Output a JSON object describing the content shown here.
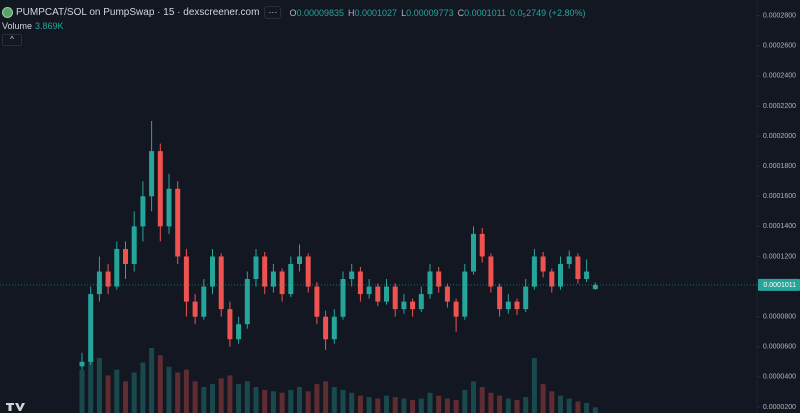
{
  "chart_data": {
    "type": "candlestick",
    "title": "PUMPCAT/SOL on PumpSwap · 15 · dexscreener.com",
    "ohlc_keys": [
      "O",
      "H",
      "L",
      "C"
    ],
    "change": "0.0₅2749 (+2.80%)",
    "volume_title": "Volume",
    "volume_last_label": "3.869K",
    "up_color": "#26a69a",
    "down_color": "#ef5350",
    "ylim": [
      1.6e-05,
      0.0002904
    ],
    "yticks": [
      {
        "value": 0.00028,
        "label": "0.0002800"
      },
      {
        "value": 0.00026,
        "label": "0.0002600"
      },
      {
        "value": 0.00024,
        "label": "0.0002400"
      },
      {
        "value": 0.00022,
        "label": "0.0002200"
      },
      {
        "value": 0.0002,
        "label": "0.0002000"
      },
      {
        "value": 0.00018,
        "label": "0.0001800"
      },
      {
        "value": 0.00016,
        "label": "0.0001600"
      },
      {
        "value": 0.00014,
        "label": "0.0001400"
      },
      {
        "value": 0.00012,
        "label": "0.0001200"
      },
      {
        "value": 8e-05,
        "label": "0.0000800"
      },
      {
        "value": 6e-05,
        "label": "0.0000600"
      },
      {
        "value": 4e-05,
        "label": "0.0000400"
      },
      {
        "value": 2e-05,
        "label": "0.0000200"
      }
    ],
    "grid": false,
    "open": [
      4.7e-05,
      5e-05,
      9.5e-05,
      0.00011,
      0.0001,
      0.000125,
      0.000115,
      0.00014,
      0.00016,
      0.00019,
      0.00014,
      0.000165,
      0.00012,
      9e-05,
      8e-05,
      0.0001,
      0.00012,
      8.5e-05,
      6.5e-05,
      7.5e-05,
      0.000105,
      0.00012,
      0.0001,
      0.00011,
      9.5e-05,
      0.000115,
      0.00012,
      0.0001,
      8e-05,
      6.5e-05,
      8e-05,
      0.000105,
      0.00011,
      9.5e-05,
      0.0001,
      9e-05,
      0.0001,
      8.5e-05,
      9e-05,
      8.5e-05,
      9.5e-05,
      0.00011,
      0.0001,
      9e-05,
      8e-05,
      0.00011,
      0.000135,
      0.00012,
      0.0001,
      8.5e-05,
      9e-05,
      8.5e-05,
      0.0001,
      0.00012,
      0.00011,
      0.0001,
      0.000115,
      0.00012,
      0.000105,
      9.835e-05
    ],
    "high": [
      5.6e-05,
      0.0001,
      0.00012,
      0.000115,
      0.00013,
      0.00013,
      0.00015,
      0.00017,
      0.00021,
      0.000195,
      0.000175,
      0.00017,
      0.000125,
      9.5e-05,
      0.000105,
      0.000125,
      0.000122,
      9e-05,
      8e-05,
      0.00011,
      0.000125,
      0.000123,
      0.000115,
      0.000112,
      0.00012,
      0.000128,
      0.000122,
      0.000103,
      8.4e-05,
      8.5e-05,
      0.00011,
      0.000115,
      0.000113,
      0.000105,
      0.000102,
      0.000105,
      0.000102,
      9.5e-05,
      9.2e-05,
      0.0001,
      0.000115,
      0.000113,
      0.000102,
      9.2e-05,
      0.000115,
      0.00014,
      0.000139,
      0.000122,
      0.000102,
      9.5e-05,
      9.2e-05,
      0.000105,
      0.000125,
      0.000123,
      0.000112,
      0.00012,
      0.000124,
      0.000122,
      0.000118,
      0.0001027
    ],
    "low": [
      4.5e-05,
      4.8e-05,
      9e-05,
      9.5e-05,
      9.8e-05,
      0.000105,
      0.00011,
      0.00013,
      0.00015,
      0.00013,
      0.000135,
      0.000115,
      8e-05,
      7.5e-05,
      7.8e-05,
      9.5e-05,
      8e-05,
      6e-05,
      6.2e-05,
      7.2e-05,
      0.0001,
      9.5e-05,
      9.6e-05,
      9e-05,
      9.3e-05,
      0.00011,
      9.6e-05,
      7.5e-05,
      5.8e-05,
      6.2e-05,
      7.8e-05,
      0.0001,
      9e-05,
      9.2e-05,
      8.7e-05,
      8.8e-05,
      8e-05,
      8.2e-05,
      8e-05,
      8.3e-05,
      9.2e-05,
      9.6e-05,
      8.6e-05,
      7e-05,
      7.8e-05,
      0.000108,
      0.000116,
      9.6e-05,
      8e-05,
      8.2e-05,
      8.1e-05,
      8.3e-05,
      9.8e-05,
      0.000106,
      9.6e-05,
      9.8e-05,
      0.000112,
      0.000102,
      0.000103,
      9.773e-05
    ],
    "close": [
      5e-05,
      9.5e-05,
      0.00011,
      0.0001,
      0.000125,
      0.000115,
      0.00014,
      0.00016,
      0.00019,
      0.00014,
      0.000165,
      0.00012,
      9e-05,
      8e-05,
      0.0001,
      0.00012,
      8.5e-05,
      6.5e-05,
      7.5e-05,
      0.000105,
      0.00012,
      0.0001,
      0.00011,
      9.5e-05,
      0.000115,
      0.00012,
      0.0001,
      8e-05,
      6.5e-05,
      8e-05,
      0.000105,
      0.00011,
      9.5e-05,
      0.0001,
      9e-05,
      0.0001,
      8.5e-05,
      9e-05,
      8.5e-05,
      9.5e-05,
      0.00011,
      0.0001,
      9e-05,
      8e-05,
      0.00011,
      0.000135,
      0.00012,
      0.0001,
      8.5e-05,
      9e-05,
      8.5e-05,
      0.0001,
      0.00012,
      0.00011,
      0.0001,
      0.000115,
      0.00012,
      0.000105,
      0.00011,
      0.0001011
    ],
    "volume": [
      30000,
      42000,
      38000,
      26000,
      30000,
      22000,
      28000,
      35000,
      45000,
      40000,
      32000,
      28000,
      30000,
      22000,
      18000,
      20000,
      24000,
      26000,
      20000,
      22000,
      18000,
      16000,
      15000,
      14000,
      16000,
      18000,
      15000,
      20000,
      22000,
      18000,
      16000,
      14000,
      12000,
      11000,
      10000,
      12000,
      11000,
      10000,
      9000,
      10000,
      14000,
      12000,
      10000,
      9000,
      16000,
      22000,
      18000,
      14000,
      12000,
      10000,
      9000,
      11000,
      38000,
      20000,
      15000,
      12000,
      10000,
      8000,
      7000,
      3869
    ]
  }
}
